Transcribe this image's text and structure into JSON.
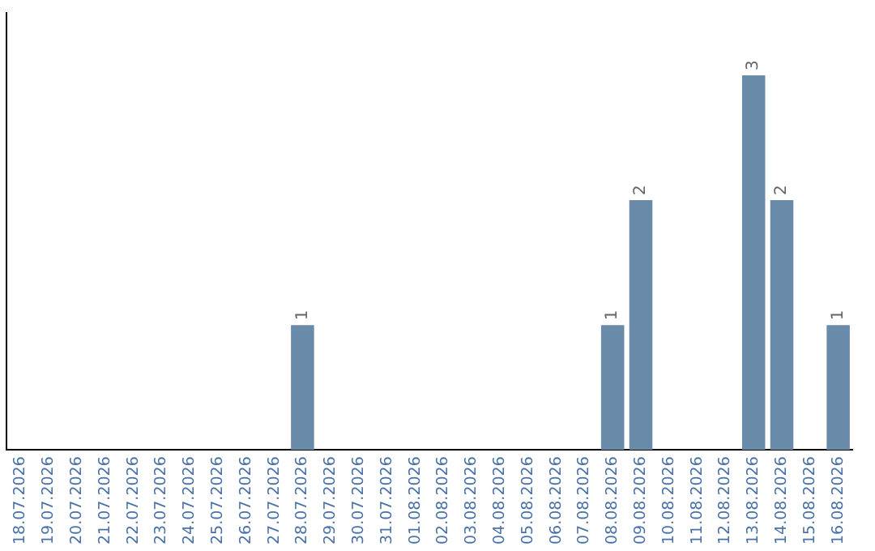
{
  "chart_data": {
    "type": "bar",
    "categories": [
      "18.07.2026",
      "19.07.2026",
      "20.07.2026",
      "21.07.2026",
      "22.07.2026",
      "23.07.2026",
      "24.07.2026",
      "25.07.2026",
      "26.07.2026",
      "27.07.2026",
      "28.07.2026",
      "29.07.2026",
      "30.07.2026",
      "31.07.2026",
      "01.08.2026",
      "02.08.2026",
      "03.08.2026",
      "04.08.2026",
      "05.08.2026",
      "06.08.2026",
      "07.08.2026",
      "08.08.2026",
      "09.08.2026",
      "10.08.2026",
      "11.08.2026",
      "12.08.2026",
      "13.08.2026",
      "14.08.2026",
      "15.08.2026",
      "16.08.2026"
    ],
    "values": [
      0,
      0,
      0,
      0,
      0,
      0,
      0,
      0,
      0,
      0,
      1,
      0,
      0,
      0,
      0,
      0,
      0,
      0,
      0,
      0,
      0,
      1,
      2,
      0,
      0,
      0,
      3,
      2,
      0,
      1
    ],
    "value_labels": [
      null,
      null,
      null,
      null,
      null,
      null,
      null,
      null,
      null,
      null,
      "1",
      null,
      null,
      null,
      null,
      null,
      null,
      null,
      null,
      null,
      null,
      "1",
      "2",
      null,
      null,
      null,
      "3",
      "2",
      null,
      "1"
    ],
    "color": "#6a8aaa",
    "grid": false,
    "legend": false
  }
}
